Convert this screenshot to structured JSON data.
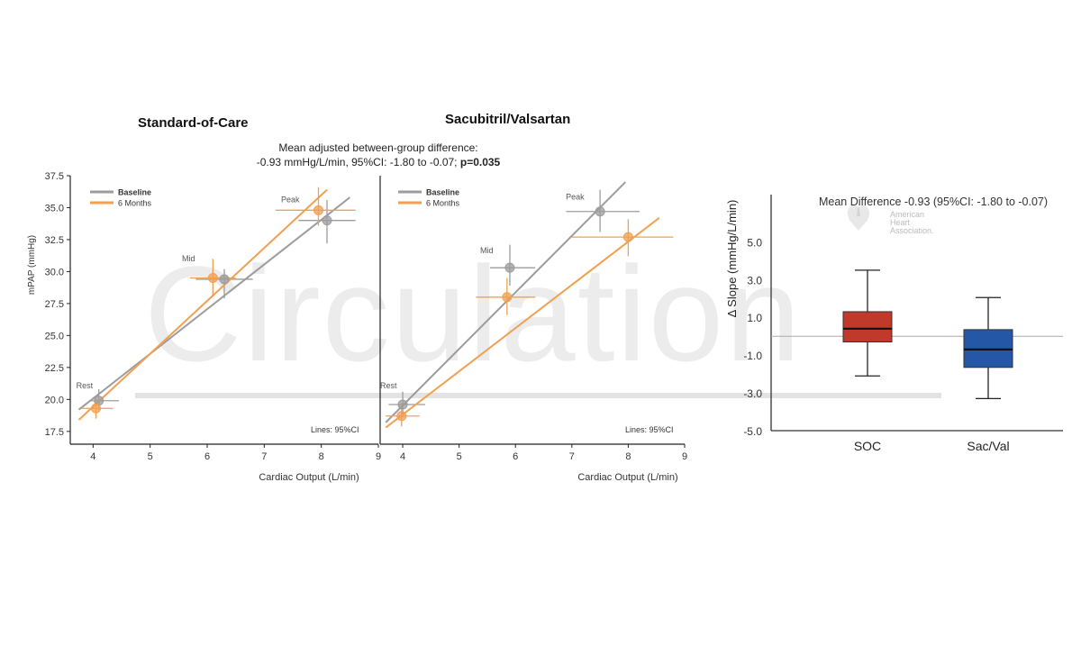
{
  "figure": {
    "subtitle_line1": "Mean adjusted between-group difference:",
    "subtitle_line2_prefix": "-0.93 mmHg/L/min, 95%CI: -1.80 to -0.07; ",
    "subtitle_line2_bold": "p=0.035",
    "watermark": "Circulation",
    "aha_logo_text": [
      "American",
      "Heart",
      "Association."
    ]
  },
  "chart_data": [
    {
      "type": "scatter",
      "title": "Standard-of-Care",
      "xlabel": "Cardiac Output (L/min)",
      "ylabel": "mPAP (mmHg)",
      "xlim": [
        3.6,
        9.0
      ],
      "ylim": [
        16.5,
        37.5
      ],
      "xticks": [
        "4",
        "5",
        "6",
        "7",
        "8",
        "9"
      ],
      "yticks": [
        "17.5",
        "20.0",
        "22.5",
        "25.0",
        "27.5",
        "30.0",
        "32.5",
        "35.0",
        "37.5"
      ],
      "legend": {
        "position": "top-left",
        "entries": [
          "Baseline",
          "6 Months"
        ]
      },
      "note": "Lines: 95%CI",
      "point_labels": [
        "Rest",
        "Mid",
        "Peak"
      ],
      "colors": {
        "baseline": "#9c9c9c",
        "six_months": "#f0a050"
      },
      "series": [
        {
          "name": "Baseline",
          "x": [
            4.1,
            6.3,
            8.1
          ],
          "y": [
            19.9,
            29.4,
            34.0
          ],
          "x_err": [
            [
              3.95,
              4.45
            ],
            [
              5.8,
              6.8
            ],
            [
              7.6,
              8.6
            ]
          ],
          "y_err": [
            [
              19.2,
              20.8
            ],
            [
              27.9,
              30.2
            ],
            [
              32.2,
              35.6
            ]
          ],
          "fit": [
            [
              3.75,
              19.2
            ],
            [
              8.5,
              35.8
            ]
          ]
        },
        {
          "name": "6 Months",
          "x": [
            4.05,
            6.1,
            7.95
          ],
          "y": [
            19.3,
            29.5,
            34.8
          ],
          "x_err": [
            [
              3.8,
              4.35
            ],
            [
              5.7,
              6.5
            ],
            [
              7.2,
              8.6
            ]
          ],
          "y_err": [
            [
              18.5,
              20.1
            ],
            [
              28.1,
              31.0
            ],
            [
              33.6,
              36.6
            ]
          ],
          "fit": [
            [
              3.75,
              18.4
            ],
            [
              8.1,
              36.4
            ]
          ]
        }
      ]
    },
    {
      "type": "scatter",
      "title": "Sacubitril/Valsartan",
      "xlabel": "Cardiac Output (L/min)",
      "xlim": [
        3.6,
        9.0
      ],
      "ylim": [
        16.5,
        37.5
      ],
      "xticks": [
        "4",
        "5",
        "6",
        "7",
        "8",
        "9"
      ],
      "legend": {
        "position": "top-left",
        "entries": [
          "Baseline",
          "6 Months"
        ]
      },
      "note": "Lines: 95%CI",
      "point_labels": [
        "Rest",
        "Mid",
        "Peak"
      ],
      "colors": {
        "baseline": "#9c9c9c",
        "six_months": "#f0a050"
      },
      "series": [
        {
          "name": "Baseline",
          "x": [
            4.0,
            5.9,
            7.5
          ],
          "y": [
            19.6,
            30.3,
            34.7
          ],
          "x_err": [
            [
              3.75,
              4.4
            ],
            [
              5.55,
              6.35
            ],
            [
              6.9,
              8.2
            ]
          ],
          "y_err": [
            [
              18.6,
              20.6
            ],
            [
              28.9,
              32.1
            ],
            [
              33.1,
              36.4
            ]
          ],
          "fit": [
            [
              3.7,
              18.2
            ],
            [
              7.95,
              37.0
            ]
          ]
        },
        {
          "name": "6 Months",
          "x": [
            3.98,
            5.85,
            8.0
          ],
          "y": [
            18.7,
            28.0,
            32.7
          ],
          "x_err": [
            [
              3.7,
              4.3
            ],
            [
              5.3,
              6.35
            ],
            [
              7.0,
              8.8
            ]
          ],
          "y_err": [
            [
              17.9,
              19.7
            ],
            [
              26.6,
              29.5
            ],
            [
              31.2,
              34.1
            ]
          ],
          "fit": [
            [
              3.7,
              17.8
            ],
            [
              8.55,
              34.2
            ]
          ]
        }
      ]
    },
    {
      "type": "box",
      "title": "Mean Difference -0.93 (95%CI: -1.80 to -0.07)",
      "ylabel": "Δ Slope (mmHg/L/min)",
      "ylim": [
        -5.0,
        7.5
      ],
      "yticks": [
        "5.0",
        "3.0",
        "1.0",
        "-1.0",
        "-3.0",
        "-5.0"
      ],
      "categories": [
        "SOC",
        "Sac/Val"
      ],
      "colors": {
        "SOC": "#c0392b",
        "Sac/Val": "#2457a6"
      },
      "boxes": [
        {
          "name": "SOC",
          "whisker_low": -2.1,
          "q1": -0.3,
          "median": 0.4,
          "q3": 1.3,
          "whisker_high": 3.5
        },
        {
          "name": "Sac/Val",
          "whisker_low": -3.3,
          "q1": -1.65,
          "median": -0.7,
          "q3": 0.35,
          "whisker_high": 2.05
        }
      ]
    }
  ]
}
